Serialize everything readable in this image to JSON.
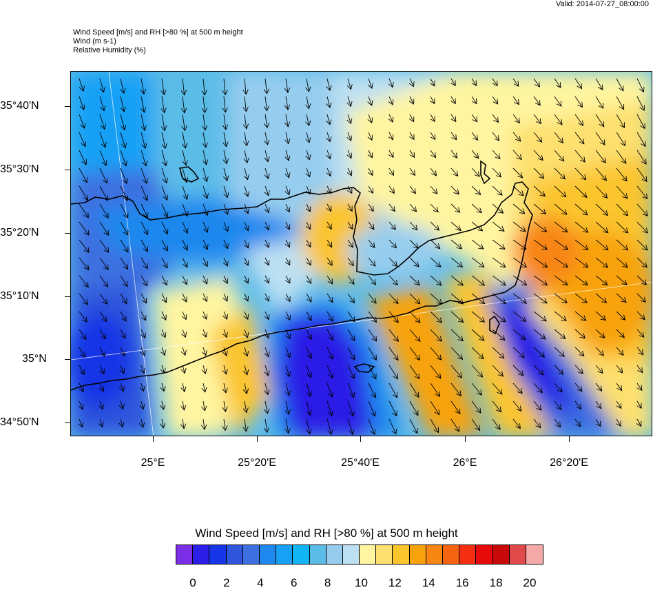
{
  "header": {
    "valid": "Valid: 2014-07-27_08:00:00",
    "title_line1": "Wind Speed [m/s] and RH [>80 %] at 500 m height",
    "title_line2": "Wind   (m s-1)",
    "title_line3": "Relative Humidity   (%)"
  },
  "axes": {
    "lat_labels": [
      "35°40'N",
      "35°30'N",
      "35°20'N",
      "35°10'N",
      "35°N",
      "34°50'N"
    ],
    "lon_labels": [
      "25°E",
      "25°20'E",
      "25°40'E",
      "26°E",
      "26°20'E"
    ]
  },
  "colorbar": {
    "title": "Wind Speed [m/s] and RH [>80 %] at 500 m height",
    "colors": [
      "#7a2fe6",
      "#2b1ee6",
      "#1535e6",
      "#2e55dc",
      "#3d6fe0",
      "#1e88ee",
      "#17a0f5",
      "#12b6f5",
      "#5cbce8",
      "#96cdee",
      "#bde0f2",
      "#fff5a0",
      "#fde070",
      "#fbc52e",
      "#f8a30c",
      "#f88612",
      "#f56410",
      "#f52e12",
      "#e60a0a",
      "#c80a0a",
      "#e04a4a",
      "#f5a8a8"
    ],
    "labels": [
      "0",
      "2",
      "4",
      "6",
      "8",
      "10",
      "12",
      "14",
      "16",
      "18",
      "20"
    ]
  },
  "map": {
    "region": "Crete",
    "wind_direction": "north-westerly"
  }
}
